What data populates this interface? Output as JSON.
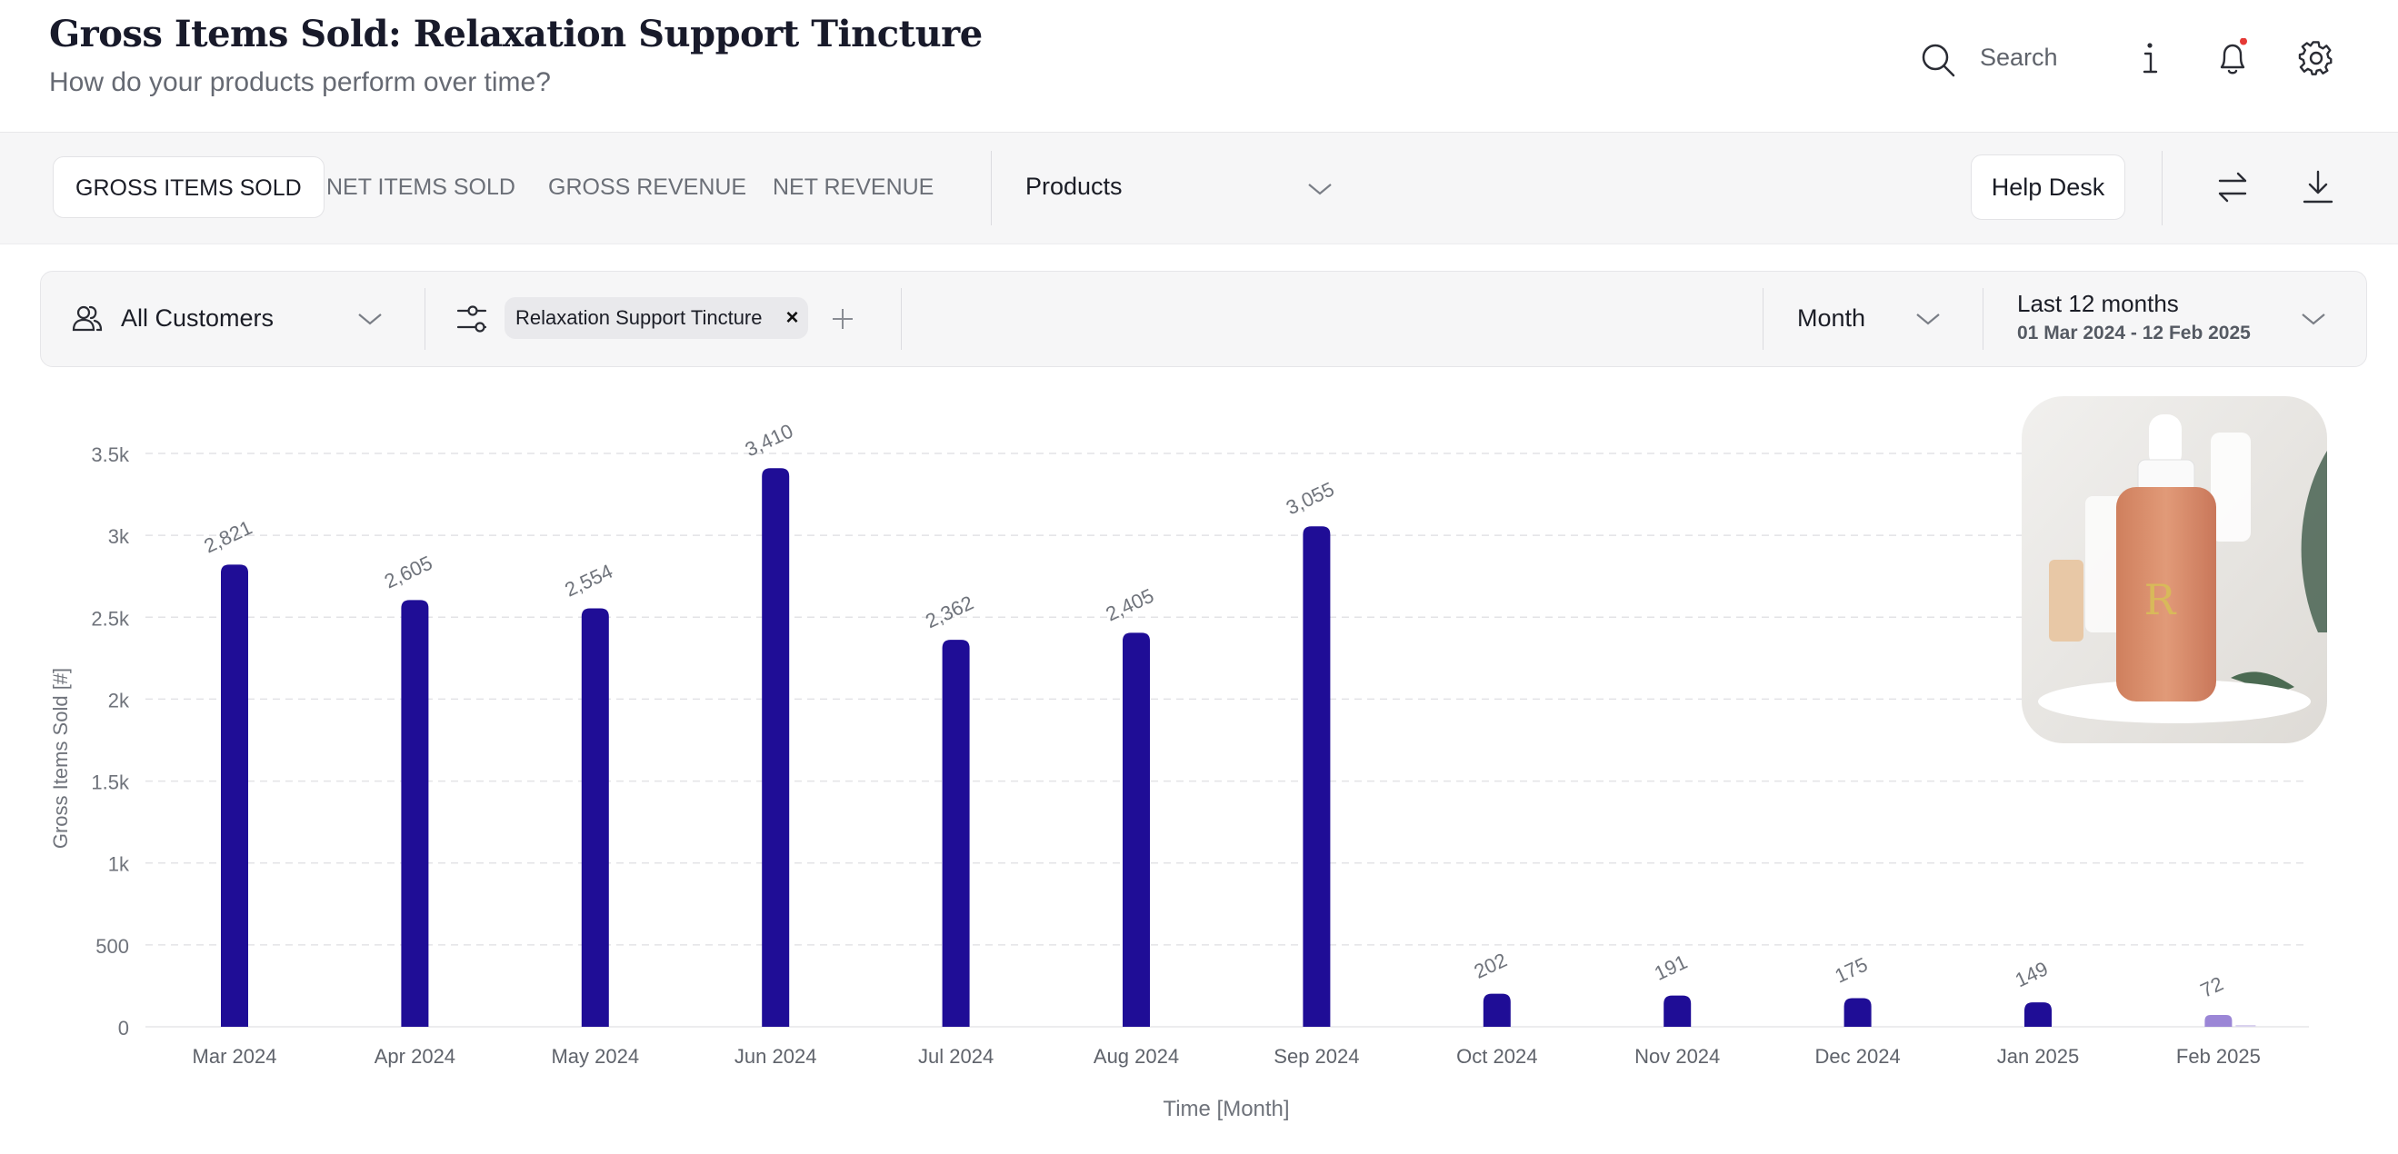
{
  "header": {
    "title": "Gross Items Sold: Relaxation Support Tincture",
    "subtitle": "How do your products perform over time?",
    "search_label": "Search",
    "notification_dot_color": "#e53935"
  },
  "toolbar": {
    "tabs": [
      {
        "label": "GROSS ITEMS SOLD",
        "active": true
      },
      {
        "label": "NET ITEMS SOLD",
        "active": false
      },
      {
        "label": "GROSS REVENUE",
        "active": false
      },
      {
        "label": "NET REVENUE",
        "active": false
      }
    ],
    "products_label": "Products",
    "help_desk_label": "Help Desk"
  },
  "filters": {
    "customers_label": "All Customers",
    "product_chip_label": "Relaxation Support Tincture",
    "chip_remove_glyph": "×",
    "granularity_label": "Month",
    "period_label": "Last 12 months",
    "period_range": "01 Mar 2024 - 12 Feb 2025"
  },
  "icons": [
    "search-icon",
    "info-icon",
    "bell-icon",
    "gear-icon",
    "swap-icon",
    "download-icon",
    "customers-icon",
    "filter-icon",
    "plus-icon",
    "chevron-down-icon"
  ],
  "chart_data": {
    "type": "bar",
    "categories": [
      "Mar 2024",
      "Apr 2024",
      "May 2024",
      "Jun 2024",
      "Jul 2024",
      "Aug 2024",
      "Sep 2024",
      "Oct 2024",
      "Nov 2024",
      "Dec 2024",
      "Jan 2025",
      "Feb 2025"
    ],
    "values": [
      2821,
      2605,
      2554,
      3410,
      2362,
      2405,
      3055,
      202,
      191,
      175,
      149,
      72
    ],
    "data_labels": [
      "2,821",
      "2,605",
      "2,554",
      "3,410",
      "2,362",
      "2,405",
      "3,055",
      "202",
      "191",
      "175",
      "149",
      "72"
    ],
    "ylabel": "Gross Items Sold [#]",
    "xlabel": "Time [Month]",
    "ylim": [
      0,
      3500
    ],
    "yticks": [
      0,
      500,
      1000,
      1500,
      2000,
      2500,
      3000,
      3500
    ],
    "ytick_labels": [
      "0",
      "500",
      "1k",
      "1.5k",
      "2k",
      "2.5k",
      "3k",
      "3.5k"
    ],
    "grid": true,
    "bar_color": "#1f0d96",
    "partial_bar_color": "#9b86d6",
    "partial_categories": [
      "Feb 2025"
    ]
  }
}
